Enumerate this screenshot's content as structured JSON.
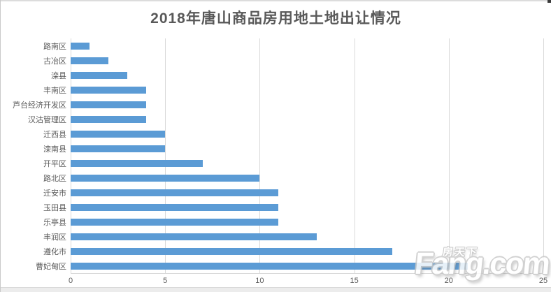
{
  "title": "2018年唐山商品房用地土地出让情况",
  "chart_data": {
    "type": "bar",
    "orientation": "horizontal",
    "title": "2018年唐山商品房用地土地出让情况",
    "categories": [
      "路南区",
      "古冶区",
      "滦县",
      "丰南区",
      "芦台经济开发区",
      "汉沽管理区",
      "迁西县",
      "滦南县",
      "开平区",
      "路北区",
      "迁安市",
      "玉田县",
      "乐亭县",
      "丰润区",
      "遵化市",
      "曹妃甸区"
    ],
    "values": [
      1,
      2,
      3,
      4,
      4,
      4,
      5,
      5,
      7,
      10,
      11,
      11,
      11,
      13,
      17,
      21
    ],
    "xlabel": "",
    "ylabel": "",
    "xlim": [
      0,
      25
    ],
    "x_ticks": [
      0,
      5,
      10,
      15,
      20,
      25
    ],
    "grid": "vertical-only",
    "legend": "none",
    "bar_color": "#5b9bd5",
    "gridline_color": "#d9d9d9",
    "title_color": "#595959",
    "label_color": "#595959"
  },
  "watermark": {
    "cn_text": "房天下",
    "en_text": "Fang.com"
  }
}
